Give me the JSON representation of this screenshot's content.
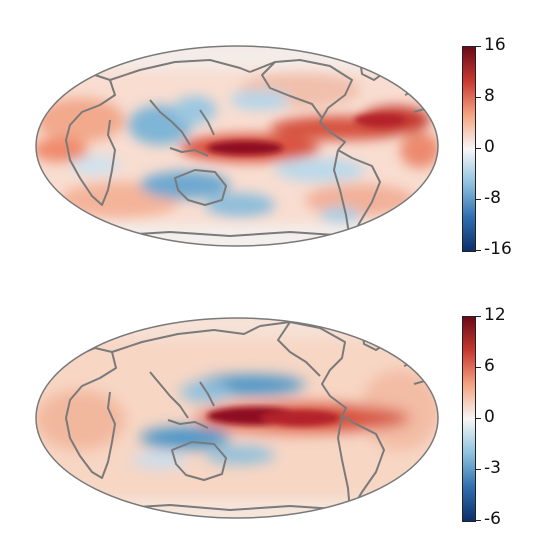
{
  "maps": [
    {
      "id": "top",
      "colorbar": {
        "ticks": [
          "16",
          "8",
          "0",
          "-8",
          "-16"
        ],
        "min": -16,
        "max": 16,
        "colors": [
          "#0d2f6b",
          "#2f6fb0",
          "#8fc3de",
          "#f7f7f7",
          "#f4a582",
          "#c8392f",
          "#6b0a1a"
        ]
      },
      "anomaly_pattern": "strong equatorial Pacific warm anomaly, negative anomalies flanking north and south, warm tropical Atlantic"
    },
    {
      "id": "bottom",
      "colorbar": {
        "ticks": [
          "12",
          "6",
          "0",
          "-3",
          "-6"
        ],
        "min": -6,
        "max": 12,
        "colors": [
          "#0d2f6b",
          "#2f6fb0",
          "#8fc3de",
          "#f7f7f7",
          "#f4a582",
          "#c8392f",
          "#6b0a1a"
        ]
      },
      "anomaly_pattern": "smooth equatorial Pacific warm tongue with cool horseshoe to the north and south-west"
    }
  ],
  "colors": {
    "coastline": "#7a7a7a",
    "outline": "#7a7a7a",
    "background_field": "#f6d7c8"
  }
}
